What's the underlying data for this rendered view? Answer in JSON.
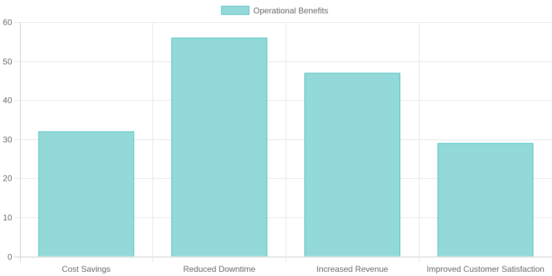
{
  "chart_data": {
    "type": "bar",
    "title": "",
    "categories": [
      "Cost Savings",
      "Reduced Downtime",
      "Increased Revenue",
      "Improved Customer Satisfaction"
    ],
    "series": [
      {
        "name": "Operational Benefits",
        "values": [
          32,
          56,
          47,
          29
        ],
        "fill": "#94d9d9",
        "border": "#4bc0c0"
      }
    ],
    "xlabel": "",
    "ylabel": "",
    "ylim": [
      0,
      60
    ],
    "yticks": [
      0,
      10,
      20,
      30,
      40,
      50,
      60
    ],
    "grid": true,
    "legend_position": "top"
  },
  "legend": {
    "label": "Operational Benefits"
  }
}
